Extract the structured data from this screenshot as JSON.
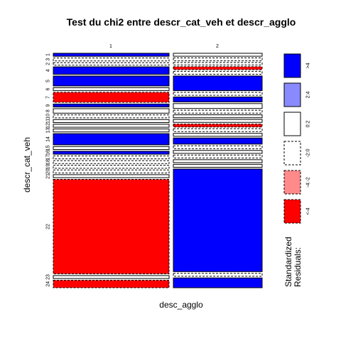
{
  "chart_data": {
    "type": "mosaic",
    "title": "Test du chi2 entre descr_cat_veh et descr_agglo",
    "xlabel": "desc_agglo",
    "ylabel": "descr_cat_veh",
    "columns": [
      "1",
      "2"
    ],
    "rows": [
      "1",
      "3",
      "2",
      "4",
      "5",
      "6",
      "7",
      "9",
      "8",
      "10",
      "11",
      "12",
      "13",
      "14",
      "15",
      "16",
      "17",
      "18",
      "19",
      "20",
      "21",
      "22",
      "23",
      "24"
    ],
    "row_tick_labels": [
      "1",
      "3",
      "2",
      "4",
      "5",
      "6",
      "7",
      "9",
      "8",
      "10",
      "11",
      "12",
      "13",
      "14",
      "15",
      "16",
      "17",
      "18",
      "19",
      "20",
      "21",
      "22",
      "23",
      "24"
    ],
    "column_widths": [
      0.5,
      0.5
    ],
    "row_share": {
      "1": [
        0.012,
        0.012
      ],
      "3": [
        0.012,
        0.012
      ],
      "2": [
        0.01,
        0.01
      ],
      "4": [
        0.03,
        0.012
      ],
      "5": [
        0.04,
        0.012
      ],
      "6": [
        0.012,
        0.06
      ],
      "7": [
        0.04,
        0.012
      ],
      "9": [
        0.012,
        0.02
      ],
      "8": [
        0.018,
        0.02
      ],
      "10": [
        0.012,
        0.012
      ],
      "11": [
        0.012,
        0.012
      ],
      "12": [
        0.012,
        0.012
      ],
      "13": [
        0.012,
        0.012
      ],
      "14": [
        0.045,
        0.012
      ],
      "15": [
        0.012,
        0.012
      ],
      "16": [
        0.012,
        0.025
      ],
      "17": [
        0.012,
        0.012
      ],
      "18": [
        0.012,
        0.012
      ],
      "19": [
        0.012,
        0.012
      ],
      "20": [
        0.012,
        0.012
      ],
      "21": [
        0.012,
        0.012
      ],
      "22": [
        0.38,
        0.42
      ],
      "23": [
        0.012,
        0.012
      ],
      "24": [
        0.03,
        0.04
      ]
    },
    "residual_class": {
      "1": [
        "blue",
        "white"
      ],
      "3": [
        "dash",
        "dash"
      ],
      "2": [
        "dash",
        "dash"
      ],
      "4": [
        "blue",
        "red"
      ],
      "5": [
        "blue",
        "dash"
      ],
      "6": [
        "white",
        "blue"
      ],
      "7": [
        "red",
        "dash"
      ],
      "9": [
        "blue",
        "blue"
      ],
      "8": [
        "white",
        "white"
      ],
      "10": [
        "dash",
        "dash"
      ],
      "11": [
        "white",
        "white"
      ],
      "12": [
        "white",
        "white"
      ],
      "13": [
        "white",
        "red"
      ],
      "14": [
        "blue",
        "dash"
      ],
      "15": [
        "white",
        "white"
      ],
      "16": [
        "blue",
        "blue"
      ],
      "17": [
        "dash",
        "dash"
      ],
      "18": [
        "dash",
        "white"
      ],
      "19": [
        "dash",
        "dash"
      ],
      "20": [
        "dash",
        "white"
      ],
      "21": [
        "white",
        "white"
      ],
      "22": [
        "red",
        "blue"
      ],
      "23": [
        "white",
        "dash"
      ],
      "24": [
        "red",
        "blue"
      ]
    },
    "legend": {
      "title_line1": "Standardized",
      "title_line2": "Residuals:",
      "placement": "right",
      "entries": [
        {
          "label": ">4",
          "fill": "#0000ff",
          "dashed": false
        },
        {
          "label": "2:4",
          "fill": "#8a8aff",
          "dashed": false
        },
        {
          "label": "0:2",
          "fill": "#ffffff",
          "dashed": false
        },
        {
          "label": "-2:0",
          "fill": "#ffffff",
          "dashed": true
        },
        {
          "label": "-4:-2",
          "fill": "#ff8a8a",
          "dashed": true
        },
        {
          "label": "<-4",
          "fill": "#ff0000",
          "dashed": true
        }
      ]
    },
    "colors": {
      "blue": "#0000ff",
      "red": "#ff0000",
      "white": "#ffffff",
      "dash": "#ffffff"
    }
  }
}
